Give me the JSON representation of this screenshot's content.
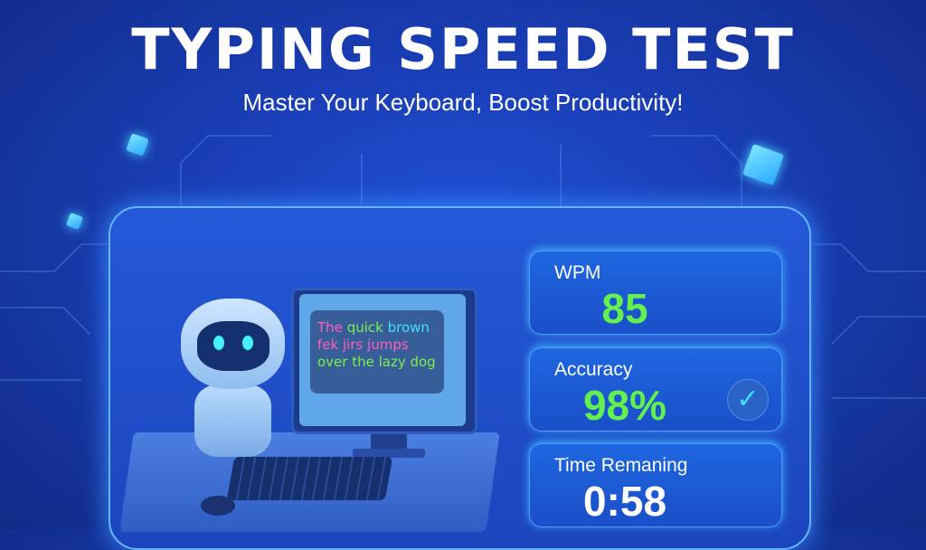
{
  "header": {
    "title": "TYPING SPEED TEST",
    "subtitle": "Master Your Keyboard, Boost Productivity!"
  },
  "screen_text": {
    "line1a": "The",
    "line1b": "quick",
    "line1c": "brown",
    "line2": "fek jirs jumps",
    "line3": "over the lazy dog"
  },
  "stats": {
    "wpm": {
      "label": "WPM",
      "value": "85"
    },
    "accuracy": {
      "label": "Accuracy",
      "value": "98%",
      "icon": "check-icon"
    },
    "time": {
      "label": "Time Remaning",
      "value": "0:58"
    }
  },
  "colors": {
    "accent_green": "#63f04f",
    "accent_cyan": "#3fe0ff",
    "background": "#1a3fb8"
  }
}
